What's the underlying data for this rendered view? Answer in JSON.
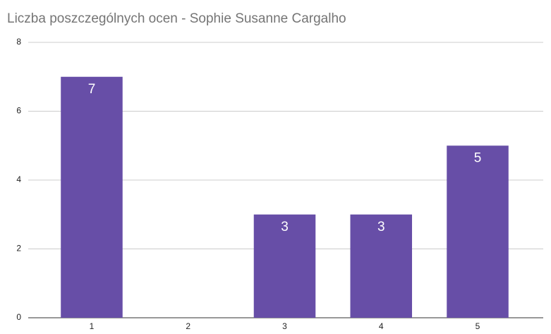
{
  "chart_data": {
    "type": "bar",
    "title": "Liczba poszczególnych ocen - Sophie Susanne Cargalho",
    "categories": [
      "1",
      "2",
      "3",
      "4",
      "5"
    ],
    "values": [
      7,
      0,
      3,
      3,
      5
    ],
    "color": "#674ea7",
    "ylim": [
      0,
      8
    ],
    "yticks": [
      0,
      2,
      4,
      6,
      8
    ],
    "grid": true,
    "data_labels": true
  }
}
